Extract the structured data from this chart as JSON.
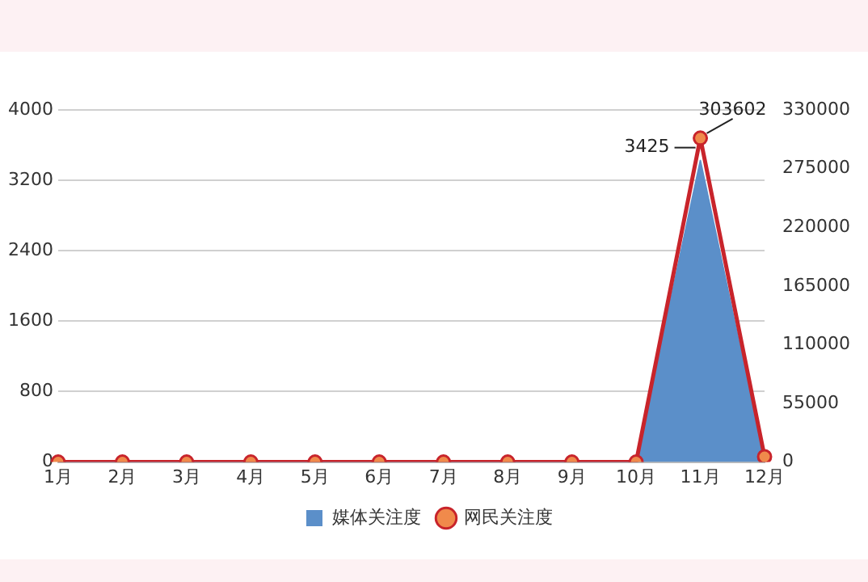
{
  "chart_data": {
    "type": "area",
    "categories": [
      "1月",
      "2月",
      "3月",
      "4月",
      "5月",
      "6月",
      "7月",
      "8月",
      "9月",
      "10月",
      "11月",
      "12月"
    ],
    "series": [
      {
        "name": "媒体关注度",
        "type": "area",
        "marker": "none",
        "color": "#5b8fc9",
        "values": [
          0,
          0,
          0,
          0,
          0,
          0,
          0,
          0,
          0,
          0,
          3425,
          0
        ],
        "value_labels": [
          null,
          null,
          null,
          null,
          null,
          null,
          null,
          null,
          null,
          null,
          "3425",
          null
        ]
      },
      {
        "name": "网民关注度",
        "type": "line",
        "axis": "y2",
        "color": "#c8242b",
        "values": [
          0,
          0,
          0,
          0,
          0,
          0,
          0,
          0,
          0,
          0,
          303602,
          5000
        ],
        "value_labels": [
          null,
          null,
          null,
          null,
          null,
          null,
          null,
          null,
          null,
          null,
          "303602",
          null
        ]
      }
    ],
    "ylim": [
      0,
      4000
    ],
    "yticks": [
      0,
      800,
      1600,
      2400,
      3200,
      4000
    ],
    "y2lim": [
      0,
      330000
    ],
    "y2ticks": [
      0,
      55000,
      110000,
      165000,
      220000,
      275000,
      330000
    ],
    "grid": "y",
    "legend": "bottom",
    "marker": "circle",
    "line_style": "solid"
  }
}
